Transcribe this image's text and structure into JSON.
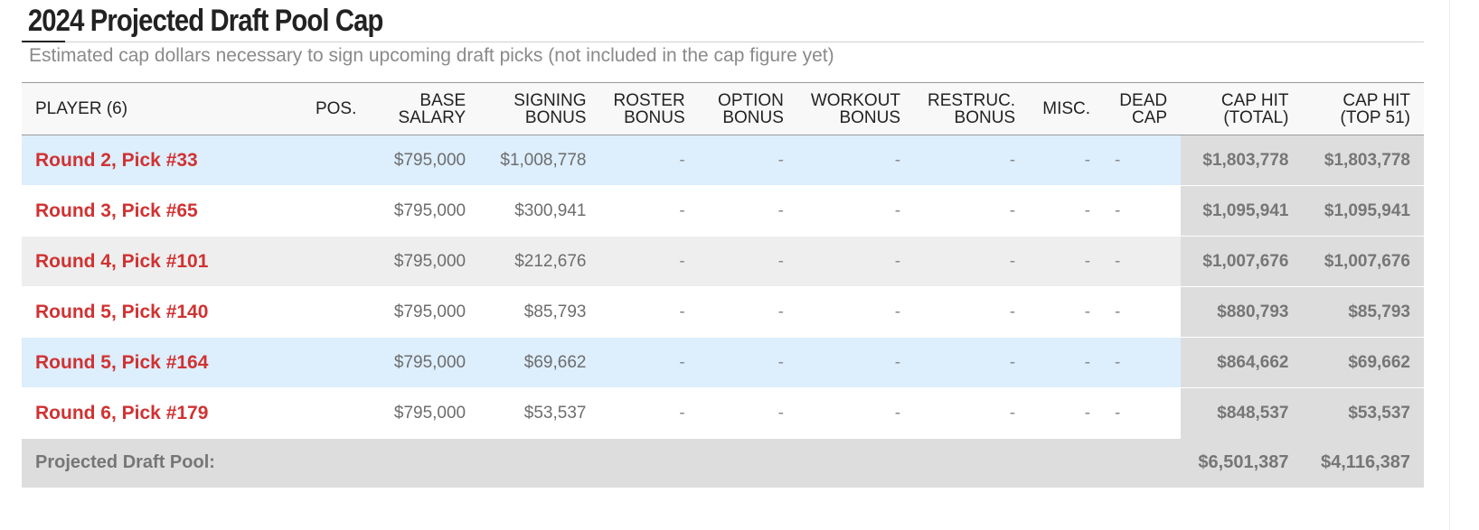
{
  "title": "2024 Projected Draft Pool Cap",
  "subtitle": "Estimated cap dollars necessary to sign upcoming draft picks (not included in the cap figure yet)",
  "colors": {
    "player_link": "#d03232",
    "row_highlight": "#ddeefd",
    "cap_column_bg": "#dddddd"
  },
  "table": {
    "headers": {
      "player": "PLAYER (6)",
      "pos": "POS.",
      "base_salary": [
        "BASE",
        "SALARY"
      ],
      "signing_bonus": [
        "SIGNING",
        "BONUS"
      ],
      "roster_bonus": [
        "ROSTER",
        "BONUS"
      ],
      "option_bonus": [
        "OPTION",
        "BONUS"
      ],
      "workout_bonus": [
        "WORKOUT",
        "BONUS"
      ],
      "restruc_bonus": [
        "RESTRUC.",
        "BONUS"
      ],
      "misc": "MISC.",
      "dead_cap": [
        "DEAD",
        "CAP"
      ],
      "cap_hit_total": [
        "CAP HIT",
        "(TOTAL)"
      ],
      "cap_hit_top51": [
        "CAP HIT",
        "(TOP 51)"
      ]
    },
    "rows": [
      {
        "player": "Round 2, Pick #33",
        "pos": "",
        "base_salary": "$795,000",
        "signing_bonus": "$1,008,778",
        "roster_bonus": "-",
        "option_bonus": "-",
        "workout_bonus": "-",
        "restruc_bonus": "-",
        "misc": "-",
        "dead_cap": "-",
        "cap_hit_total": "$1,803,778",
        "cap_hit_top51": "$1,803,778"
      },
      {
        "player": "Round 3, Pick #65",
        "pos": "",
        "base_salary": "$795,000",
        "signing_bonus": "$300,941",
        "roster_bonus": "-",
        "option_bonus": "-",
        "workout_bonus": "-",
        "restruc_bonus": "-",
        "misc": "-",
        "dead_cap": "-",
        "cap_hit_total": "$1,095,941",
        "cap_hit_top51": "$1,095,941"
      },
      {
        "player": "Round 4, Pick #101",
        "pos": "",
        "base_salary": "$795,000",
        "signing_bonus": "$212,676",
        "roster_bonus": "-",
        "option_bonus": "-",
        "workout_bonus": "-",
        "restruc_bonus": "-",
        "misc": "-",
        "dead_cap": "-",
        "cap_hit_total": "$1,007,676",
        "cap_hit_top51": "$1,007,676"
      },
      {
        "player": "Round 5, Pick #140",
        "pos": "",
        "base_salary": "$795,000",
        "signing_bonus": "$85,793",
        "roster_bonus": "-",
        "option_bonus": "-",
        "workout_bonus": "-",
        "restruc_bonus": "-",
        "misc": "-",
        "dead_cap": "-",
        "cap_hit_total": "$880,793",
        "cap_hit_top51": "$85,793"
      },
      {
        "player": "Round 5, Pick #164",
        "pos": "",
        "base_salary": "$795,000",
        "signing_bonus": "$69,662",
        "roster_bonus": "-",
        "option_bonus": "-",
        "workout_bonus": "-",
        "restruc_bonus": "-",
        "misc": "-",
        "dead_cap": "-",
        "cap_hit_total": "$864,662",
        "cap_hit_top51": "$69,662"
      },
      {
        "player": "Round 6, Pick #179",
        "pos": "",
        "base_salary": "$795,000",
        "signing_bonus": "$53,537",
        "roster_bonus": "-",
        "option_bonus": "-",
        "workout_bonus": "-",
        "restruc_bonus": "-",
        "misc": "-",
        "dead_cap": "-",
        "cap_hit_total": "$848,537",
        "cap_hit_top51": "$53,537"
      }
    ],
    "footer": {
      "label": "Projected Draft Pool:",
      "cap_hit_total": "$6,501,387",
      "cap_hit_top51": "$4,116,387"
    }
  }
}
